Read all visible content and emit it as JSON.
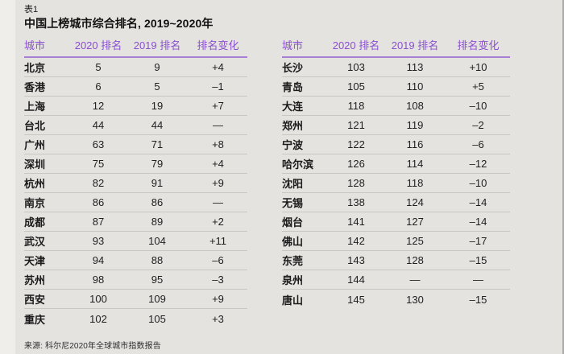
{
  "page": {
    "table_label": "表1",
    "title": "中国上榜城市综合排名, 2019~2020年",
    "source": "来源: 科尔尼2020年全球城市指数报告"
  },
  "colors": {
    "background": "#E5E3E0",
    "left_strip": "#F0EEEB",
    "accent_purple_header_text": "#8A4FD0",
    "header_rule_purple": "#A77FD4",
    "row_divider": "#C9C7C4",
    "body_text": "#1A1A1A"
  },
  "tables": [
    {
      "headers": [
        "城市",
        "2020 排名",
        "2019 排名",
        "排名变化"
      ],
      "rows": [
        [
          "北京",
          "5",
          "9",
          "+4"
        ],
        [
          "香港",
          "6",
          "5",
          "–1"
        ],
        [
          "上海",
          "12",
          "19",
          "+7"
        ],
        [
          "台北",
          "44",
          "44",
          "—"
        ],
        [
          "广州",
          "63",
          "71",
          "+8"
        ],
        [
          "深圳",
          "75",
          "79",
          "+4"
        ],
        [
          "杭州",
          "82",
          "91",
          "+9"
        ],
        [
          "南京",
          "86",
          "86",
          "—"
        ],
        [
          "成都",
          "87",
          "89",
          "+2"
        ],
        [
          "武汉",
          "93",
          "104",
          "+11"
        ],
        [
          "天津",
          "94",
          "88",
          "–6"
        ],
        [
          "苏州",
          "98",
          "95",
          "–3"
        ],
        [
          "西安",
          "100",
          "109",
          "+9"
        ],
        [
          "重庆",
          "102",
          "105",
          "+3"
        ]
      ]
    },
    {
      "headers": [
        "城市",
        "2020 排名",
        "2019 排名",
        "排名变化"
      ],
      "rows": [
        [
          "长沙",
          "103",
          "113",
          "+10"
        ],
        [
          "青岛",
          "105",
          "110",
          "+5"
        ],
        [
          "大连",
          "118",
          "108",
          "–10"
        ],
        [
          "郑州",
          "121",
          "119",
          "–2"
        ],
        [
          "宁波",
          "122",
          "116",
          "–6"
        ],
        [
          "哈尔滨",
          "126",
          "114",
          "–12"
        ],
        [
          "沈阳",
          "128",
          "118",
          "–10"
        ],
        [
          "无锡",
          "138",
          "124",
          "–14"
        ],
        [
          "烟台",
          "141",
          "127",
          "–14"
        ],
        [
          "佛山",
          "142",
          "125",
          "–17"
        ],
        [
          "东莞",
          "143",
          "128",
          "–15"
        ],
        [
          "泉州",
          "144",
          "—",
          "—"
        ],
        [
          "唐山",
          "145",
          "130",
          "–15"
        ]
      ]
    }
  ]
}
